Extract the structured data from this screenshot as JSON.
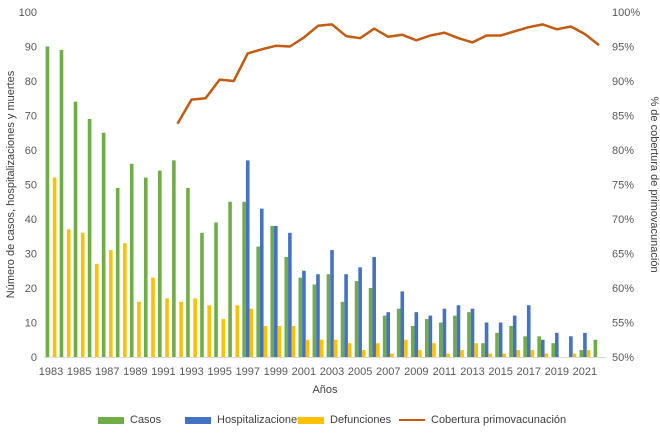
{
  "chart_data": {
    "type": "bar",
    "xlabel": "Años",
    "ylabel": "Número de casos, hospitalizaciones y muertes",
    "y2label": "% de cobertura de primovacunación",
    "ylim": [
      0,
      100
    ],
    "y2lim": [
      50,
      100
    ],
    "yticks": [
      "0",
      "10",
      "20",
      "30",
      "40",
      "50",
      "60",
      "70",
      "80",
      "90",
      "100"
    ],
    "y2ticks": [
      "50%",
      "55%",
      "60%",
      "65%",
      "70%",
      "75%",
      "80%",
      "85%",
      "90%",
      "95%",
      "100%"
    ],
    "x_tick_labels": [
      "1983",
      "1985",
      "1987",
      "1989",
      "1991",
      "1993",
      "1995",
      "1997",
      "1999",
      "2001",
      "2003",
      "2005",
      "2007",
      "2009",
      "2011",
      "2013",
      "2015",
      "2017",
      "2019",
      "2021"
    ],
    "years": [
      1983,
      1984,
      1985,
      1986,
      1987,
      1988,
      1989,
      1990,
      1991,
      1992,
      1993,
      1994,
      1995,
      1996,
      1997,
      1998,
      1999,
      2000,
      2001,
      2002,
      2003,
      2004,
      2005,
      2006,
      2007,
      2008,
      2009,
      2010,
      2011,
      2012,
      2013,
      2014,
      2015,
      2016,
      2017,
      2018,
      2019,
      2020,
      2021,
      2022
    ],
    "grid": false,
    "legend_position": "bottom",
    "series": [
      {
        "name": "Casos",
        "kind": "bar",
        "color": "#70ad47",
        "values": [
          90,
          89,
          74,
          69,
          65,
          49,
          56,
          52,
          54,
          57,
          49,
          36,
          39,
          45,
          45,
          32,
          38,
          29,
          23,
          21,
          24,
          16,
          22,
          20,
          12,
          14,
          9,
          11,
          10,
          12,
          13,
          4,
          7,
          9,
          6,
          6,
          4,
          null,
          2,
          5
        ]
      },
      {
        "name": "Hospitalizaciones",
        "kind": "bar",
        "color": "#4472c4",
        "values": [
          null,
          null,
          null,
          null,
          null,
          null,
          null,
          null,
          null,
          null,
          null,
          null,
          null,
          null,
          57,
          43,
          38,
          36,
          25,
          24,
          31,
          24,
          26,
          29,
          13,
          19,
          13,
          12,
          14,
          15,
          14,
          10,
          10,
          12,
          15,
          5,
          7,
          6,
          7,
          null
        ]
      },
      {
        "name": "Defunciones",
        "kind": "bar",
        "color": "#ffc000",
        "values": [
          52,
          37,
          36,
          27,
          31,
          33,
          16,
          23,
          17,
          16,
          17,
          15,
          11,
          15,
          14,
          9,
          9,
          9,
          5,
          5,
          5,
          4,
          2,
          4,
          1,
          5,
          2,
          4,
          1,
          2,
          4,
          1,
          1,
          2,
          2,
          1,
          null,
          1,
          2,
          null
        ]
      },
      {
        "name": "Cobertura primovacunación",
        "kind": "line",
        "axis": "right",
        "color": "#c55a11",
        "values": [
          null,
          null,
          null,
          null,
          null,
          null,
          null,
          null,
          null,
          83.8,
          87.3,
          87.5,
          90.2,
          90.0,
          94.0,
          94.6,
          95.1,
          95.0,
          96.3,
          98.0,
          98.2,
          96.5,
          96.2,
          97.6,
          96.4,
          96.7,
          95.9,
          96.6,
          97.0,
          96.2,
          95.6,
          96.6,
          96.6,
          97.2,
          97.8,
          98.2,
          97.5,
          97.9,
          96.8,
          95.2
        ]
      }
    ]
  }
}
